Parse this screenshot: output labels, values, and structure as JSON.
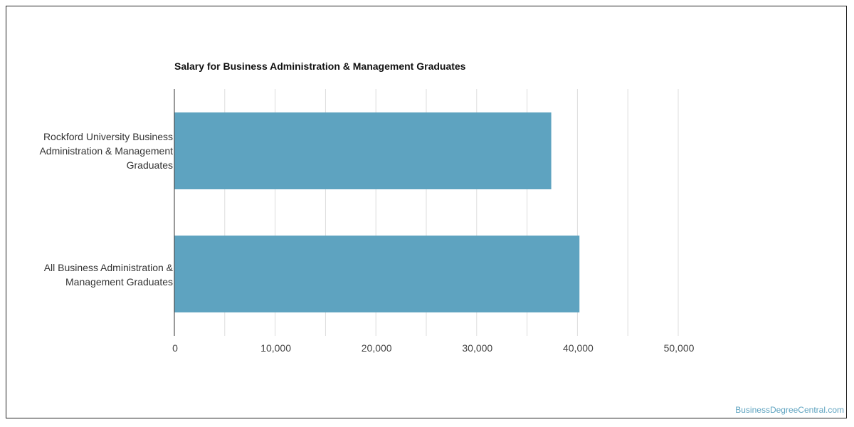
{
  "chart_data": {
    "type": "bar",
    "orientation": "horizontal",
    "title": "Salary for Business Administration & Management Graduates",
    "categories": [
      "Rockford University Business Administration & Management Graduates",
      "All Business Administration & Management Graduates"
    ],
    "values": [
      37400,
      40200
    ],
    "xlim": [
      0,
      50000
    ],
    "xticks": [
      "0",
      "10,000",
      "20,000",
      "30,000",
      "40,000",
      "50,000"
    ],
    "grid": true,
    "bar_color": "#5ea3c0",
    "grid_color": "#dddddd"
  },
  "watermark": "BusinessDegreeCentral.com"
}
